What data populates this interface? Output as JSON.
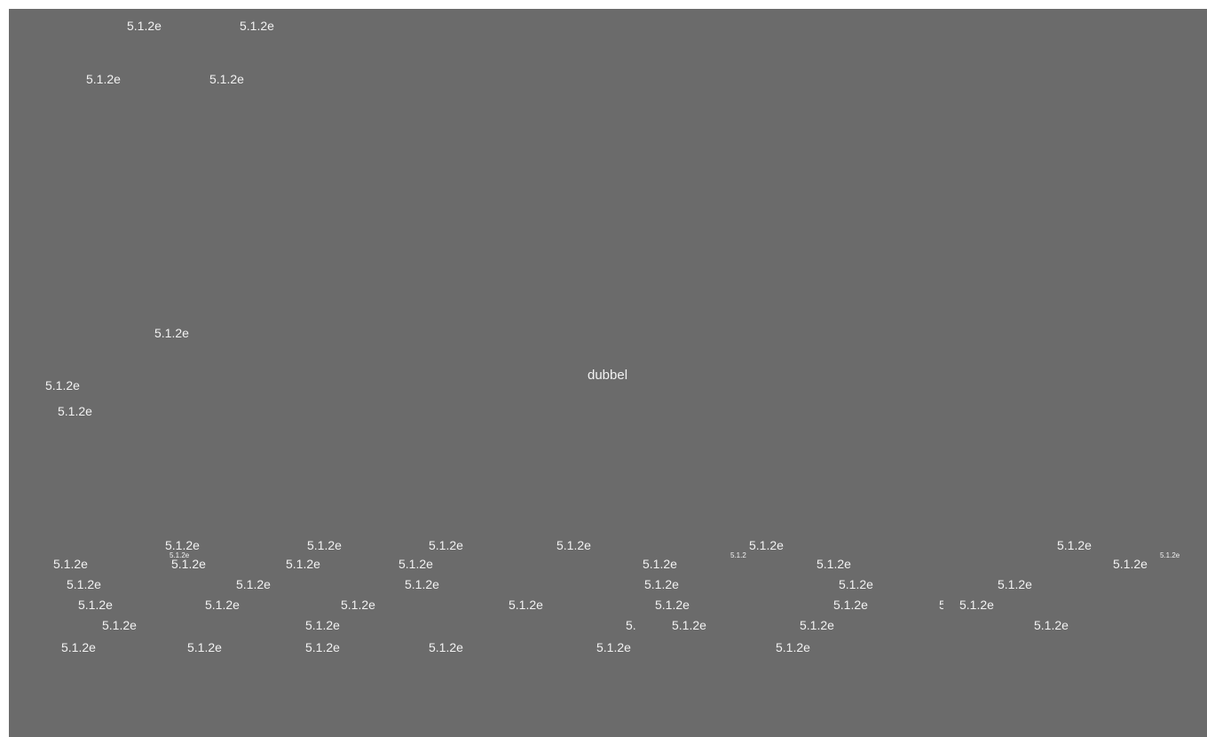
{
  "canvas": {
    "background": "#6b6b6b",
    "label_color": "#f2f2f2",
    "center_label": "dubbel",
    "version_label": "5.1.2e",
    "version_label_partial_a": "5.",
    "version_label_partial_b": "5.1.2",
    "version_label_partial_c": "5"
  }
}
